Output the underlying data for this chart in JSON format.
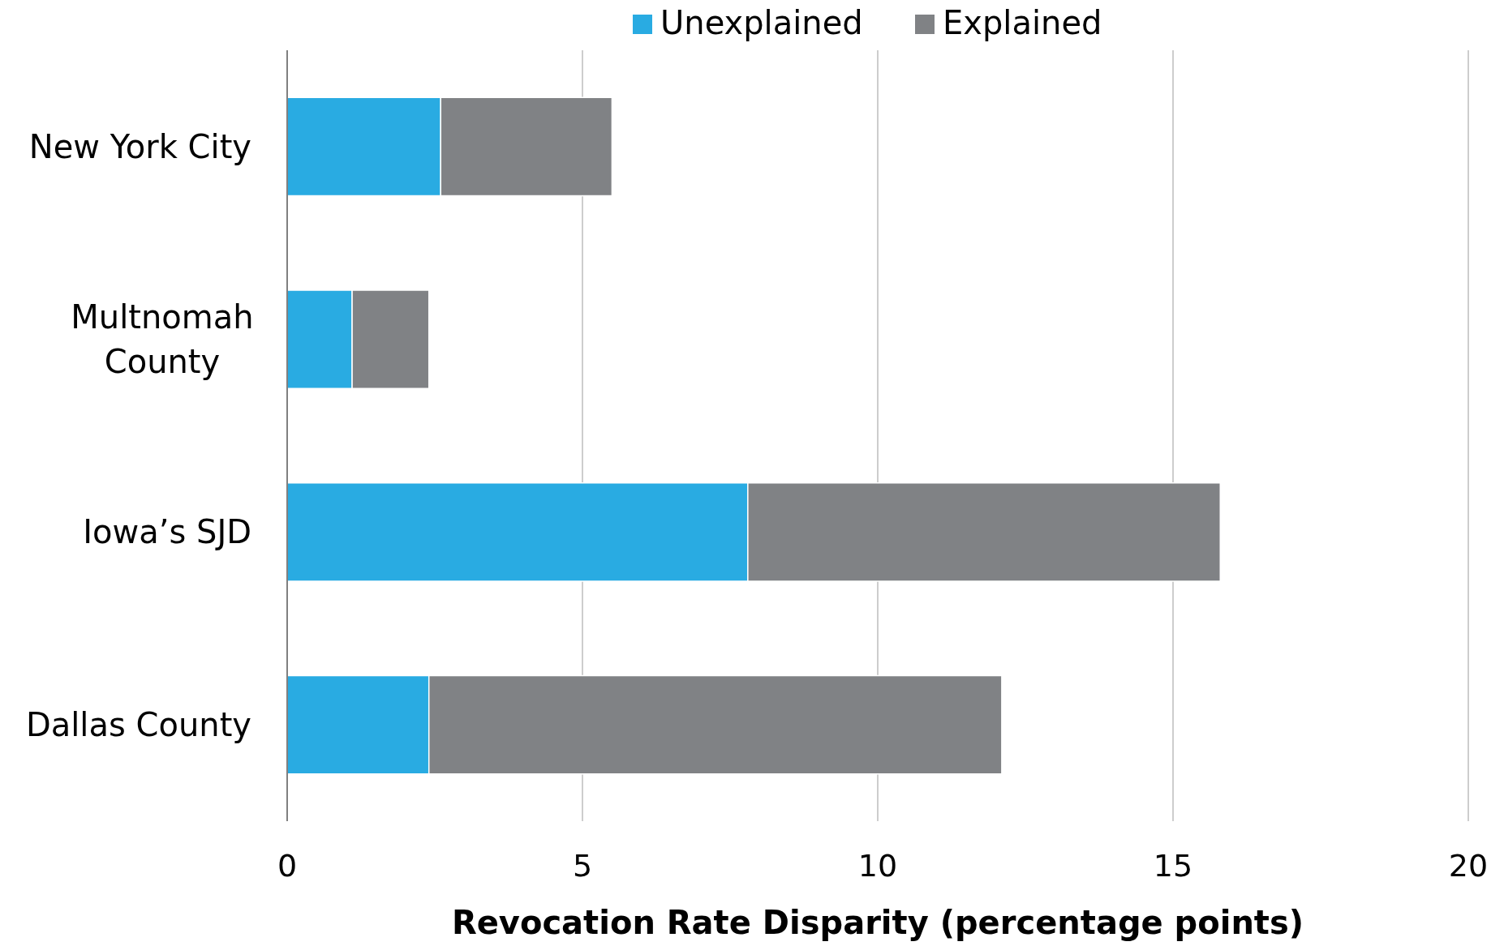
{
  "chart_data": {
    "type": "bar",
    "orientation": "horizontal",
    "stacked": true,
    "xlabel": "Revocation Rate Disparity (percentage points)",
    "categories": [
      "New York City",
      "Multnomah County",
      "Iowa’s SJD",
      "Dallas County"
    ],
    "series": [
      {
        "name": "Unexplained",
        "color": "#29abe2",
        "values": [
          2.6,
          1.1,
          7.8,
          2.4
        ]
      },
      {
        "name": "Explained",
        "color": "#808285",
        "values": [
          2.9,
          1.3,
          8.0,
          9.7
        ]
      }
    ],
    "xlim": [
      0,
      20
    ],
    "xticks": [
      0,
      5,
      10,
      15,
      20
    ],
    "grid": "x",
    "legend": "top"
  }
}
